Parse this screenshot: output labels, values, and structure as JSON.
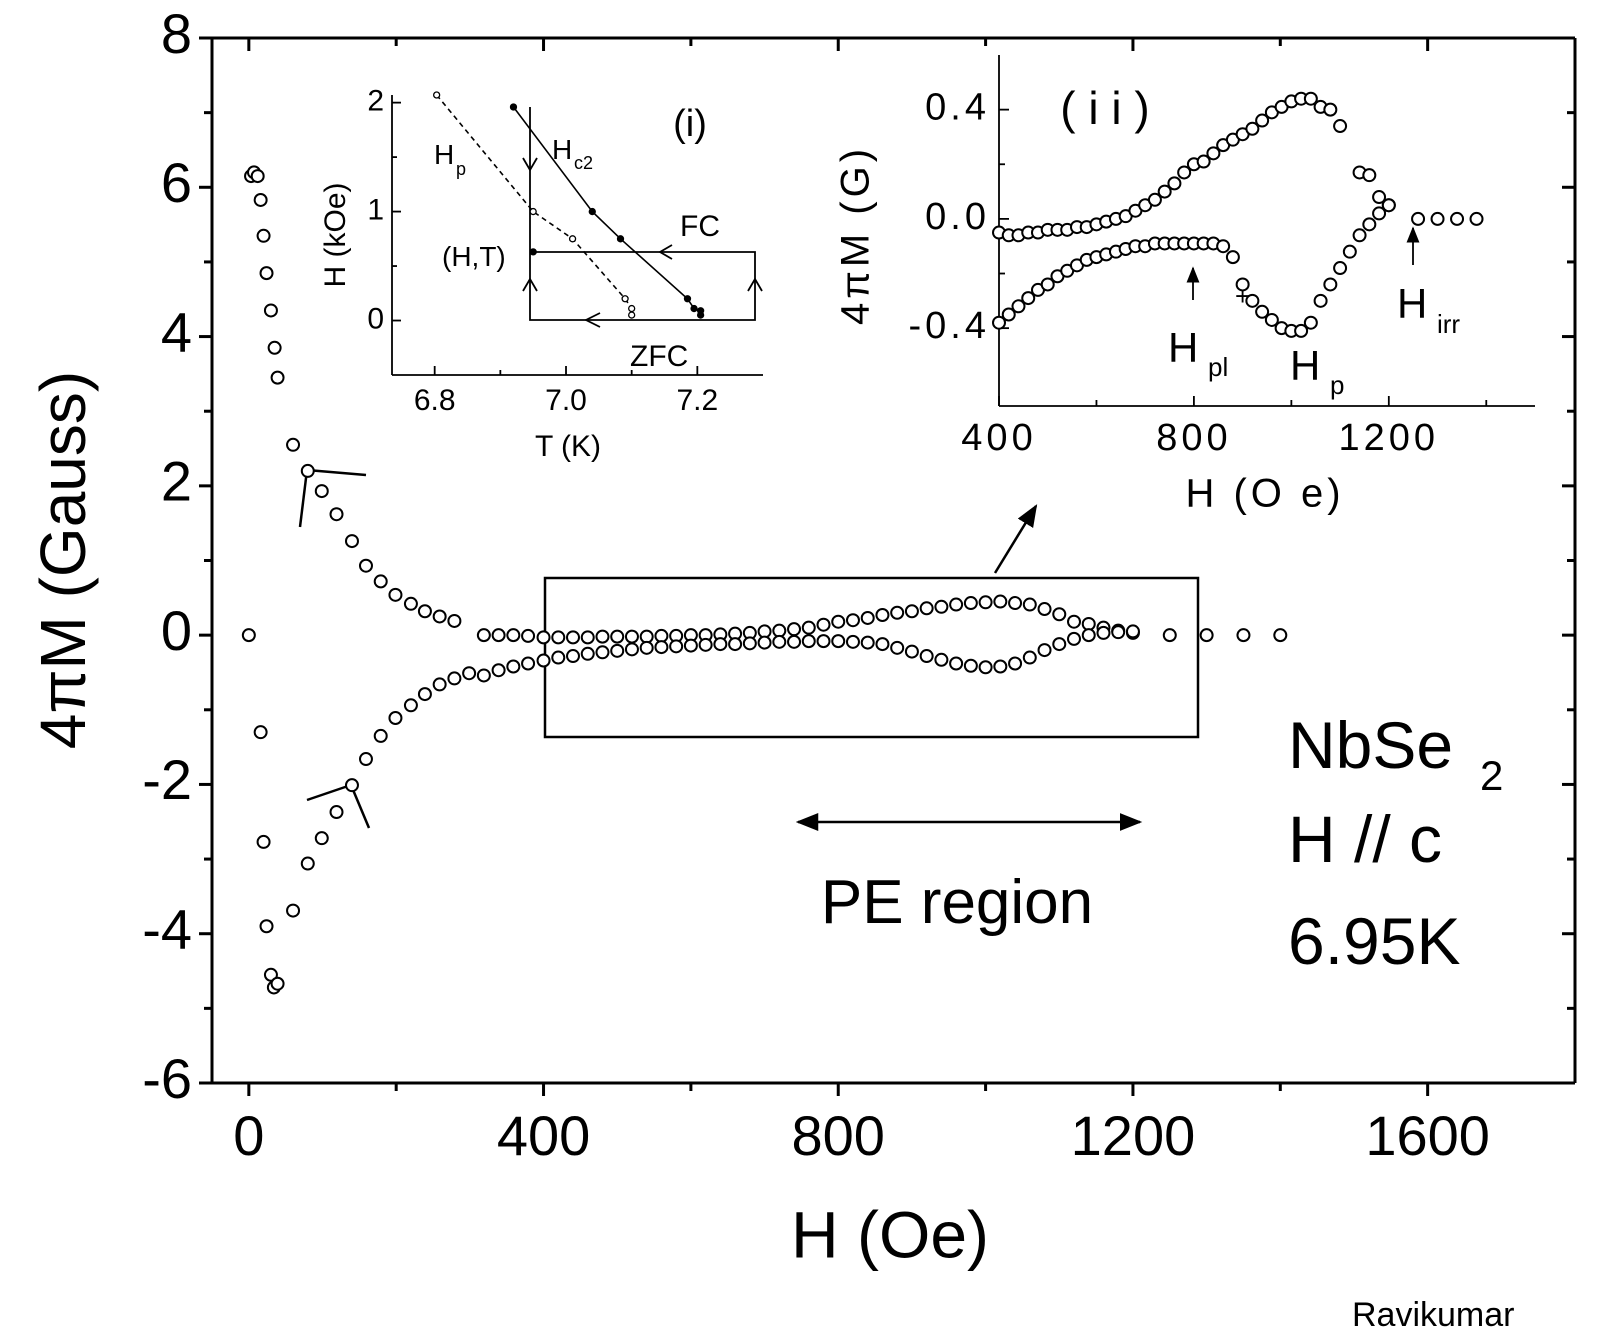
{
  "chart_data": [
    {
      "type": "scatter",
      "xlabel": "H (Oe)",
      "ylabel": "4πM (Gauss)",
      "xlim": [
        -50,
        1800
      ],
      "ylim": [
        -6,
        8
      ],
      "xticks": [
        0,
        400,
        800,
        1200,
        1600
      ],
      "xminorticks": [
        200,
        600,
        1000,
        1400
      ],
      "yticks": [
        -6,
        -4,
        -2,
        0,
        2,
        4,
        6,
        8
      ],
      "yminorticks": [
        -5,
        -3,
        -1,
        1,
        3,
        5,
        7
      ],
      "marker": "hollow",
      "color": "#000000",
      "series": [
        {
          "x": [
            0
          ],
          "values": [
            0
          ]
        },
        {
          "x": [
            3,
            7,
            12,
            16,
            20,
            24,
            30,
            35,
            39,
            60,
            80,
            99,
            119,
            140,
            159,
            179,
            199,
            220,
            239,
            259,
            279,
            319,
            339,
            359,
            379,
            400,
            420,
            440,
            460,
            480,
            500,
            520,
            540,
            560,
            580,
            600,
            620,
            640,
            660,
            680,
            700,
            720,
            740,
            760,
            780,
            800,
            820,
            840,
            860,
            880,
            900,
            920,
            940,
            960,
            980,
            1000,
            1020,
            1040,
            1060,
            1080,
            1100,
            1120,
            1140,
            1160,
            1180,
            1200,
            1250,
            1300,
            1350,
            1400
          ],
          "values": [
            6.15,
            6.2,
            6.15,
            5.83,
            5.35,
            4.85,
            4.35,
            3.85,
            3.45,
            2.55,
            2.2,
            1.93,
            1.62,
            1.26,
            0.93,
            0.72,
            0.54,
            0.42,
            0.32,
            0.25,
            0.19,
            0,
            0,
            0,
            -0.01,
            -0.03,
            -0.03,
            -0.03,
            -0.03,
            -0.02,
            -0.02,
            -0.02,
            -0.02,
            -0.01,
            -0.01,
            0,
            0,
            0.01,
            0.02,
            0.03,
            0.05,
            0.06,
            0.08,
            0.1,
            0.14,
            0.18,
            0.2,
            0.23,
            0.27,
            0.3,
            0.32,
            0.36,
            0.38,
            0.41,
            0.43,
            0.44,
            0.45,
            0.43,
            0.41,
            0.35,
            0.28,
            0.18,
            0.15,
            0.1,
            0.06,
            0.03,
            0,
            0,
            0,
            0
          ]
        },
        {
          "x": [
            16,
            20,
            24,
            30,
            34,
            39,
            60,
            80,
            99,
            119,
            140,
            159,
            179,
            199,
            220,
            239,
            259,
            279,
            299,
            319,
            339,
            359,
            379,
            400,
            420,
            440,
            460,
            480,
            500,
            520,
            540,
            560,
            580,
            600,
            620,
            640,
            660,
            680,
            700,
            720,
            740,
            760,
            780,
            800,
            820,
            840,
            860,
            880,
            900,
            920,
            940,
            960,
            980,
            1000,
            1020,
            1040,
            1060,
            1080,
            1100,
            1120,
            1140,
            1160,
            1180,
            1200
          ],
          "values": [
            -1.3,
            -2.77,
            -3.9,
            -4.55,
            -4.72,
            -4.67,
            -3.69,
            -3.06,
            -2.72,
            -2.37,
            -2.01,
            -1.66,
            -1.35,
            -1.11,
            -0.94,
            -0.79,
            -0.66,
            -0.58,
            -0.51,
            -0.54,
            -0.47,
            -0.42,
            -0.38,
            -0.34,
            -0.3,
            -0.28,
            -0.25,
            -0.23,
            -0.21,
            -0.19,
            -0.17,
            -0.16,
            -0.15,
            -0.14,
            -0.13,
            -0.12,
            -0.12,
            -0.11,
            -0.1,
            -0.09,
            -0.09,
            -0.08,
            -0.08,
            -0.08,
            -0.09,
            -0.1,
            -0.12,
            -0.17,
            -0.22,
            -0.28,
            -0.33,
            -0.38,
            -0.41,
            -0.43,
            -0.42,
            -0.38,
            -0.3,
            -0.2,
            -0.12,
            -0.05,
            0,
            0.03,
            0.04,
            0.05
          ]
        }
      ],
      "annotations": {
        "region": "PE region",
        "sample": "NbSe",
        "sample_sub": "2",
        "field": "H // c",
        "temperature": "6.95K",
        "credit": "Ravikumar"
      }
    },
    {
      "type": "scatter",
      "label": "(i)",
      "xlabel": "T (K)",
      "ylabel": "H (kOe)",
      "xlim": [
        6.735,
        7.3
      ],
      "ylim": [
        -0.5,
        2.07
      ],
      "xticks": [
        6.8,
        {
          "value": 7.0,
          "label": "7.0"
        },
        7.2
      ],
      "xminorticks": [
        6.9,
        7.1
      ],
      "yticks": [
        0,
        1,
        2
      ],
      "yminorticks": [
        0.5,
        1.5
      ],
      "color": "#000000",
      "series": [
        {
          "label": "H",
          "label_sub": "c2",
          "marker": "filled",
          "line": "solid",
          "x": [
            6.92,
            7.04,
            7.083,
            7.185,
            7.195,
            7.205,
            7.205
          ],
          "values": [
            1.96,
            1.0,
            0.75,
            0.2,
            0.11,
            0.09,
            0.05
          ]
        },
        {
          "label": "H",
          "label_sub": "p",
          "marker": "hollow",
          "line": "dashed",
          "x": [
            6.803,
            6.95,
            7.01,
            7.09,
            7.1,
            7.1
          ],
          "values": [
            2.07,
            1.0,
            0.75,
            0.2,
            0.11,
            0.05
          ]
        },
        {
          "label": "(H,T)",
          "marker": "filled",
          "line": "none",
          "x": [
            6.95
          ],
          "values": [
            0.63
          ]
        }
      ],
      "annotations": {
        "fc": "FC",
        "zfc": "ZFC"
      }
    },
    {
      "type": "scatter",
      "label": "( i i )",
      "xlabel": "H (O e)",
      "ylabel": "4πM (G)",
      "xlim": [
        400,
        1500
      ],
      "ylim": [
        -0.685,
        0.6
      ],
      "xticks": [
        400,
        800,
        1200
      ],
      "xminorticks": [
        600,
        1000,
        1400
      ],
      "yticks": [
        {
          "value": -0.4,
          "label": "-0.4"
        },
        {
          "value": 0,
          "label": "0.0"
        },
        0.4
      ],
      "yminorticks": [
        -0.2,
        0.2
      ],
      "marker": "hollow",
      "color": "#000000",
      "series": [
        {
          "x": [
            400,
            420,
            440,
            460,
            480,
            500,
            520,
            540,
            560,
            580,
            600,
            620,
            640,
            660,
            680,
            700,
            720,
            740,
            760,
            780,
            800,
            820,
            840,
            860,
            880,
            900,
            920,
            940,
            960,
            980,
            1000,
            1020,
            1040,
            1060,
            1080,
            1100,
            1140,
            1160,
            1180,
            1200,
            1260,
            1300,
            1340,
            1380
          ],
          "values": [
            -0.05,
            -0.06,
            -0.06,
            -0.05,
            -0.05,
            -0.04,
            -0.04,
            -0.04,
            -0.03,
            -0.03,
            -0.02,
            -0.01,
            0,
            0.01,
            0.03,
            0.05,
            0.07,
            0.1,
            0.13,
            0.17,
            0.2,
            0.21,
            0.24,
            0.27,
            0.29,
            0.31,
            0.33,
            0.36,
            0.39,
            0.41,
            0.43,
            0.44,
            0.44,
            0.41,
            0.4,
            0.34,
            0.17,
            0.16,
            0.08,
            0.05,
            0,
            0,
            0,
            0
          ]
        },
        {
          "x": [
            400,
            420,
            440,
            460,
            480,
            500,
            520,
            540,
            560,
            580,
            600,
            620,
            640,
            660,
            680,
            700,
            720,
            740,
            760,
            780,
            800,
            820,
            840,
            860,
            880,
            900,
            920,
            940,
            960,
            980,
            1000,
            1020,
            1040,
            1060,
            1080,
            1100,
            1120,
            1140,
            1160,
            1180,
            1200
          ],
          "values": [
            -0.38,
            -0.35,
            -0.32,
            -0.29,
            -0.26,
            -0.24,
            -0.21,
            -0.19,
            -0.17,
            -0.15,
            -0.14,
            -0.13,
            -0.12,
            -0.11,
            -0.1,
            -0.1,
            -0.09,
            -0.09,
            -0.09,
            -0.09,
            -0.09,
            -0.09,
            -0.09,
            -0.1,
            -0.14,
            -0.24,
            -0.3,
            -0.34,
            -0.37,
            -0.4,
            -0.41,
            -0.41,
            -0.38,
            -0.3,
            -0.24,
            -0.18,
            -0.12,
            -0.06,
            -0.02,
            0.02,
            0.05
          ]
        }
      ],
      "annotations": {
        "pl": "H",
        "pl_sub": "pl",
        "plus": "+",
        "p": "H",
        "p_sub": "p",
        "irr": "H",
        "irr_sub": "irr"
      }
    }
  ]
}
